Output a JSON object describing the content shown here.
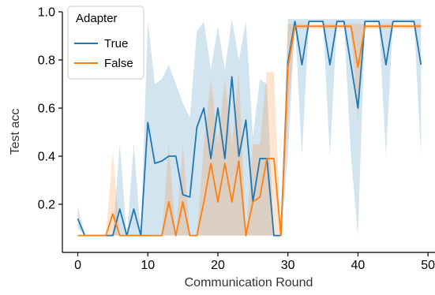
{
  "chart_data": {
    "type": "line",
    "xlabel": "Communication Round",
    "ylabel": "Test acc",
    "xlim": [
      -2.2,
      51
    ],
    "ylim": [
      0.0,
      1.0
    ],
    "xticks": [
      0,
      10,
      20,
      30,
      40,
      50
    ],
    "yticks": [
      0.2,
      0.4,
      0.6,
      0.8,
      1.0
    ],
    "ytick_labels": [
      "0.2",
      "0.4",
      "0.6",
      "0.8",
      "1.0"
    ],
    "legend": {
      "title": "Adapter",
      "placement": "top-left"
    },
    "x": [
      0,
      1,
      2,
      3,
      4,
      5,
      6,
      7,
      8,
      9,
      10,
      11,
      12,
      13,
      14,
      15,
      16,
      17,
      18,
      19,
      20,
      21,
      22,
      23,
      24,
      25,
      26,
      27,
      28,
      29,
      30,
      31,
      32,
      33,
      34,
      35,
      36,
      37,
      38,
      39,
      40,
      41,
      42,
      43,
      44,
      45,
      46,
      47,
      48,
      49
    ],
    "series": [
      {
        "name": "True",
        "color": "#1f77b4",
        "values": [
          0.14,
          0.07,
          0.07,
          0.07,
          0.07,
          0.07,
          0.18,
          0.07,
          0.18,
          0.07,
          0.54,
          0.37,
          0.38,
          0.4,
          0.4,
          0.24,
          0.23,
          0.52,
          0.6,
          0.39,
          0.6,
          0.39,
          0.73,
          0.4,
          0.55,
          0.21,
          0.39,
          0.39,
          0.07,
          0.07,
          0.79,
          0.96,
          0.78,
          0.96,
          0.96,
          0.96,
          0.78,
          0.96,
          0.96,
          0.78,
          0.6,
          0.96,
          0.96,
          0.96,
          0.78,
          0.96,
          0.96,
          0.96,
          0.96,
          0.78
        ],
        "lower": [
          0.1,
          0.07,
          0.07,
          0.07,
          0.07,
          0.07,
          0.07,
          0.07,
          0.07,
          0.07,
          0.07,
          0.07,
          0.07,
          0.07,
          0.07,
          0.07,
          0.07,
          0.07,
          0.07,
          0.07,
          0.07,
          0.07,
          0.07,
          0.07,
          0.07,
          0.07,
          0.07,
          0.07,
          0.07,
          0.07,
          0.4,
          0.96,
          0.4,
          0.96,
          0.96,
          0.96,
          0.4,
          0.96,
          0.96,
          0.4,
          0.07,
          0.96,
          0.96,
          0.96,
          0.4,
          0.96,
          0.96,
          0.96,
          0.96,
          0.4
        ],
        "upper": [
          0.19,
          0.07,
          0.07,
          0.07,
          0.07,
          0.07,
          0.45,
          0.07,
          0.45,
          0.07,
          0.96,
          0.7,
          0.72,
          0.78,
          0.7,
          0.62,
          0.56,
          0.92,
          0.96,
          0.76,
          0.94,
          0.76,
          0.97,
          0.8,
          0.96,
          0.48,
          0.72,
          0.7,
          0.07,
          0.07,
          0.97,
          0.97,
          0.97,
          0.97,
          0.97,
          0.97,
          0.97,
          0.97,
          0.97,
          0.97,
          0.97,
          0.97,
          0.97,
          0.97,
          0.97,
          0.97,
          0.97,
          0.97,
          0.97,
          0.97
        ]
      },
      {
        "name": "False",
        "color": "#ff7f0e",
        "values": [
          0.07,
          0.07,
          0.07,
          0.07,
          0.07,
          0.16,
          0.07,
          0.07,
          0.07,
          0.07,
          0.07,
          0.07,
          0.07,
          0.21,
          0.07,
          0.21,
          0.07,
          0.07,
          0.21,
          0.37,
          0.21,
          0.37,
          0.21,
          0.38,
          0.07,
          0.21,
          0.23,
          0.39,
          0.39,
          0.07,
          0.77,
          0.94,
          0.94,
          0.94,
          0.94,
          0.94,
          0.94,
          0.94,
          0.94,
          0.94,
          0.77,
          0.94,
          0.94,
          0.94,
          0.94,
          0.94,
          0.94,
          0.94,
          0.94,
          0.94
        ],
        "lower": [
          0.07,
          0.07,
          0.07,
          0.07,
          0.07,
          0.07,
          0.07,
          0.07,
          0.07,
          0.07,
          0.07,
          0.07,
          0.07,
          0.07,
          0.07,
          0.07,
          0.07,
          0.07,
          0.07,
          0.07,
          0.07,
          0.07,
          0.07,
          0.07,
          0.07,
          0.07,
          0.07,
          0.07,
          0.07,
          0.07,
          0.55,
          0.93,
          0.93,
          0.93,
          0.93,
          0.93,
          0.93,
          0.93,
          0.93,
          0.93,
          0.55,
          0.93,
          0.93,
          0.93,
          0.93,
          0.93,
          0.93,
          0.93,
          0.93,
          0.93
        ],
        "upper": [
          0.07,
          0.07,
          0.07,
          0.07,
          0.07,
          0.42,
          0.07,
          0.07,
          0.07,
          0.07,
          0.07,
          0.07,
          0.07,
          0.45,
          0.07,
          0.45,
          0.07,
          0.07,
          0.45,
          0.72,
          0.45,
          0.72,
          0.45,
          0.75,
          0.07,
          0.45,
          0.45,
          0.75,
          0.75,
          0.07,
          0.95,
          0.95,
          0.95,
          0.95,
          0.95,
          0.95,
          0.95,
          0.95,
          0.95,
          0.95,
          0.95,
          0.95,
          0.95,
          0.95,
          0.95,
          0.95,
          0.95,
          0.95,
          0.95,
          0.95
        ]
      }
    ]
  }
}
